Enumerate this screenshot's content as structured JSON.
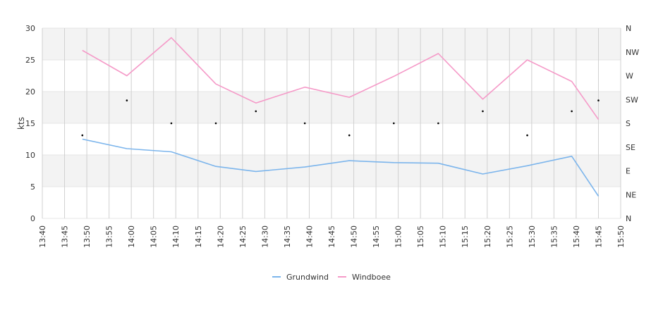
{
  "chart_data": {
    "type": "line",
    "title": "",
    "xlabel": "",
    "ylabel": "kts",
    "ylim": [
      0,
      30
    ],
    "y_ticks": [
      0,
      5,
      10,
      15,
      20,
      25,
      30
    ],
    "x_ticks": [
      "13:40",
      "13:45",
      "13:50",
      "13:55",
      "14:00",
      "14:05",
      "14:10",
      "14:15",
      "14:20",
      "14:25",
      "14:30",
      "14:35",
      "14:40",
      "14:45",
      "14:50",
      "14:55",
      "15:00",
      "15:05",
      "15:10",
      "15:15",
      "15:20",
      "15:25",
      "15:30",
      "15:35",
      "15:40",
      "15:45",
      "15:50"
    ],
    "x_range": [
      "13:40",
      "15:50"
    ],
    "y2_ticks": [
      "N",
      "NE",
      "E",
      "SE",
      "S",
      "SW",
      "W",
      "NW",
      "N"
    ],
    "grid": true,
    "legend_position": "bottom",
    "series": [
      {
        "name": "Grundwind",
        "color": "#7cb5ec",
        "x": [
          "13:49",
          "13:59",
          "14:09",
          "14:19",
          "14:28",
          "14:39",
          "14:49",
          "14:59",
          "15:09",
          "15:19",
          "15:29",
          "15:39",
          "15:45"
        ],
        "values": [
          12.5,
          11.0,
          10.5,
          8.2,
          7.4,
          8.1,
          9.1,
          8.8,
          8.7,
          7.0,
          8.3,
          9.8,
          3.5
        ]
      },
      {
        "name": "Windboee",
        "color": "#f59ac8",
        "x": [
          "13:49",
          "13:59",
          "14:09",
          "14:19",
          "14:28",
          "14:39",
          "14:49",
          "14:59",
          "15:09",
          "15:19",
          "15:29",
          "15:39",
          "15:45"
        ],
        "values": [
          26.5,
          22.5,
          28.5,
          21.2,
          18.2,
          20.7,
          19.1,
          22.4,
          26.0,
          18.8,
          25.0,
          21.6,
          15.6
        ]
      }
    ],
    "direction_points": {
      "color": "#000000",
      "x": [
        "13:49",
        "13:59",
        "14:09",
        "14:19",
        "14:28",
        "14:39",
        "14:49",
        "14:59",
        "15:09",
        "15:19",
        "15:29",
        "15:39",
        "15:45"
      ],
      "values": [
        13.1,
        18.6,
        15.0,
        15.0,
        16.9,
        15.0,
        13.1,
        15.0,
        15.0,
        16.9,
        13.1,
        16.9,
        18.6
      ]
    }
  }
}
